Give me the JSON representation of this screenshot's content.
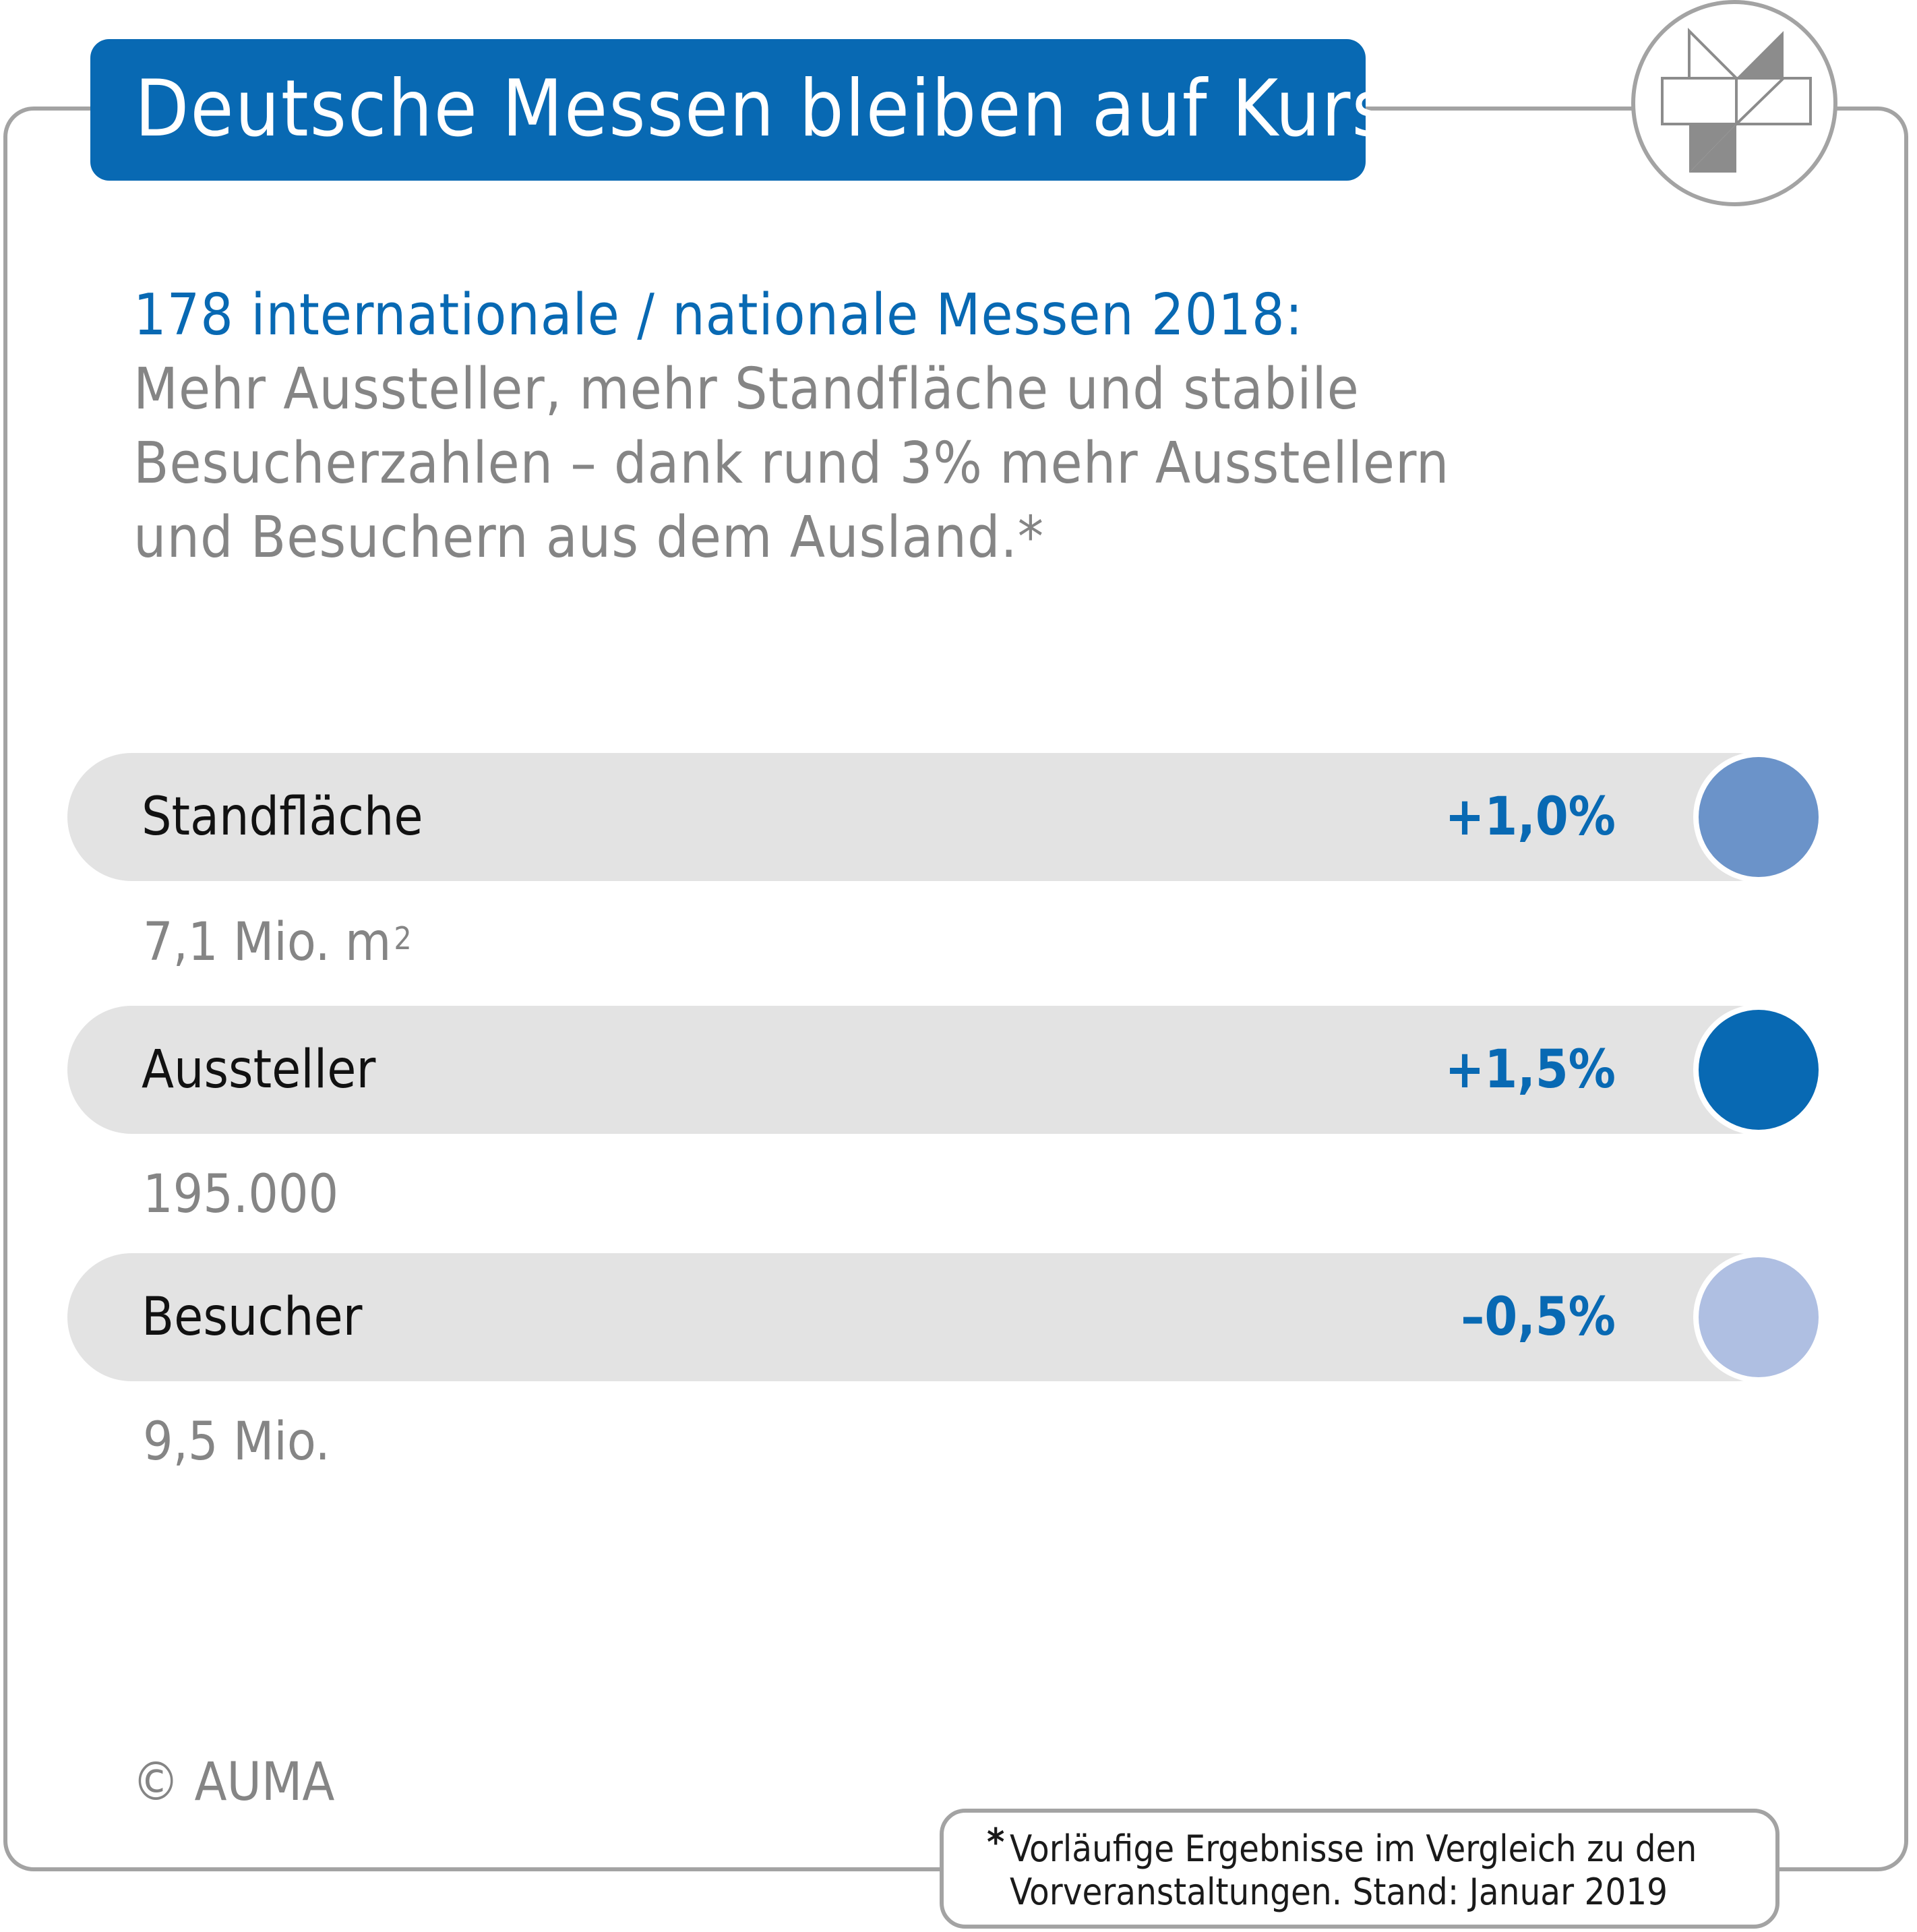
{
  "title": "Deutsche Messen bleiben auf Kurs",
  "intro": {
    "headline": "178 internationale / nationale Messen 2018:",
    "lines": [
      "Mehr Aussteller, mehr Standfläche und stabile",
      "Besucherzahlen – dank rund 3% mehr Ausstellern",
      "und Besuchern aus dem Ausland.*"
    ]
  },
  "metrics": [
    {
      "label": "Standfläche",
      "change": "+1,0%",
      "total": "7,1 Mio. m",
      "total_sup": "2",
      "color": "#6b93c9"
    },
    {
      "label": "Aussteller",
      "change": "+1,5%",
      "total": "195.000",
      "total_sup": "",
      "color": "#0869b3"
    },
    {
      "label": "Besucher",
      "change": "–0,5%",
      "total": "9,5 Mio.",
      "total_sup": "",
      "color": "#afbfe2"
    }
  ],
  "copyright": "© AUMA",
  "footnote": {
    "marker": "*",
    "lines": [
      "Vorläufige Ergebnisse im Vergleich zu den",
      "Vorveranstaltungen. Stand: Januar 2019"
    ]
  },
  "colors": {
    "brand_blue": "#0869b3",
    "frame_gray": "#a3a3a3",
    "bar_gray": "#e3e3e3",
    "text_gray": "#858585"
  },
  "icons": {
    "logo": "auma-logo-icon"
  }
}
